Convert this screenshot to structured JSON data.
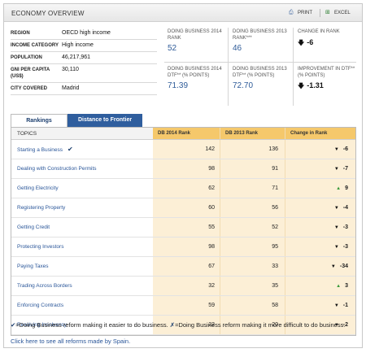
{
  "header": {
    "title": "ECONOMY OVERVIEW",
    "print_label": "PRINT",
    "excel_label": "EXCEL"
  },
  "info": [
    {
      "key": "REGION",
      "value": "OECD high income"
    },
    {
      "key": "INCOME CATEGORY",
      "value": "High income"
    },
    {
      "key": "POPULATION",
      "value": "46,217,961"
    },
    {
      "key": "GNI PER CAPITA (US$)",
      "value": "30,110"
    },
    {
      "key": "CITY COVERED",
      "value": "Madrid"
    }
  ],
  "stats": {
    "db2014_rank_label": "DOING BUSINESS 2014 RANK",
    "db2014_rank_value": "52",
    "db2013_rank_label": "DOING BUSINESS 2013 RANK***",
    "db2013_rank_value": "46",
    "change_rank_label": "CHANGE IN RANK",
    "change_rank_value": "-6",
    "db2014_dtf_label": "DOING BUSINESS 2014 DTF** (% POINTS)",
    "db2014_dtf_value": "71.39",
    "db2013_dtf_label": "DOING BUSINESS 2013 DTF** (% POINTS)",
    "db2013_dtf_value": "72.70",
    "improvement_label": "IMPROVEMENT IN DTF** (% POINTS)",
    "improvement_value": "-1.31"
  },
  "tabs": [
    {
      "label": "Rankings"
    },
    {
      "label": "Distance to Frontier"
    }
  ],
  "table": {
    "headers": {
      "topic": "TOPICS",
      "db2014": "DB 2014 Rank",
      "db2013": "DB 2013 Rank",
      "change": "Change in Rank"
    },
    "rows": [
      {
        "topic": "Starting a Business",
        "db2014": "142",
        "db2013": "136",
        "direction": "down",
        "change": "-6",
        "reform": "✔"
      },
      {
        "topic": "Dealing with Construction Permits",
        "db2014": "98",
        "db2013": "91",
        "direction": "down",
        "change": "-7",
        "reform": ""
      },
      {
        "topic": "Getting Electricity",
        "db2014": "62",
        "db2013": "71",
        "direction": "up",
        "change": "9",
        "reform": ""
      },
      {
        "topic": "Registering Property",
        "db2014": "60",
        "db2013": "56",
        "direction": "down",
        "change": "-4",
        "reform": ""
      },
      {
        "topic": "Getting Credit",
        "db2014": "55",
        "db2013": "52",
        "direction": "down",
        "change": "-3",
        "reform": ""
      },
      {
        "topic": "Protecting Investors",
        "db2014": "98",
        "db2013": "95",
        "direction": "down",
        "change": "-3",
        "reform": ""
      },
      {
        "topic": "Paying Taxes",
        "db2014": "67",
        "db2013": "33",
        "direction": "down",
        "change": "-34",
        "reform": ""
      },
      {
        "topic": "Trading Across Borders",
        "db2014": "32",
        "db2013": "35",
        "direction": "up",
        "change": "3",
        "reform": ""
      },
      {
        "topic": "Enforcing Contracts",
        "db2014": "59",
        "db2013": "58",
        "direction": "down",
        "change": "-1",
        "reform": ""
      },
      {
        "topic": "Resolving Insolvency",
        "db2014": "22",
        "db2013": "20",
        "direction": "down",
        "change": "-2",
        "reform": ""
      }
    ]
  },
  "legend": {
    "check_mark": "✔",
    "check_text": "=Doing Business reform making it easier to do business.",
    "x_mark": "✗",
    "x_text": "=Doing Business reform making it more difficult to do business."
  },
  "reforms_link": "Click here to see all reforms made by Spain.",
  "colors": {
    "accent": "#2f5e9e",
    "table_fill": "#fcefd6",
    "header_fill": "#f5c86b"
  }
}
